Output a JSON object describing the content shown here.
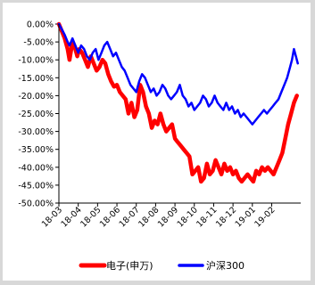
{
  "chart_data": {
    "type": "line",
    "title": "",
    "xlabel": "",
    "ylabel": "",
    "ylim": [
      -50,
      0
    ],
    "y_ticks": [
      0,
      -5,
      -10,
      -15,
      -20,
      -25,
      -30,
      -35,
      -40,
      -45,
      -50
    ],
    "y_tick_labels": [
      "0.00%",
      "-5.00%",
      "-10.00%",
      "-15.00%",
      "-20.00%",
      "-25.00%",
      "-30.00%",
      "-35.00%",
      "-40.00%",
      "-45.00%",
      "-50.00%"
    ],
    "x_tick_labels": [
      "18-03",
      "18-04",
      "18-05",
      "18-06",
      "18-07",
      "18-08",
      "18-09",
      "18-10",
      "18-11",
      "18-12",
      "19-01",
      "19-02"
    ],
    "x_range": [
      0,
      12.5
    ],
    "grid": false,
    "legend_position": "bottom",
    "series": [
      {
        "name": "电子(申万)",
        "color": "#ff0000",
        "x": [
          0,
          0.15,
          0.3,
          0.45,
          0.55,
          0.7,
          0.8,
          0.95,
          1.05,
          1.2,
          1.35,
          1.5,
          1.65,
          1.8,
          1.95,
          2.1,
          2.25,
          2.4,
          2.55,
          2.7,
          2.85,
          3.0,
          3.15,
          3.3,
          3.45,
          3.6,
          3.75,
          3.9,
          4.05,
          4.2,
          4.35,
          4.5,
          4.65,
          4.8,
          4.95,
          5.1,
          5.25,
          5.4,
          5.55,
          5.7,
          5.85,
          6.0,
          6.15,
          6.3,
          6.45,
          6.6,
          6.75,
          6.9,
          7.05,
          7.2,
          7.35,
          7.5,
          7.65,
          7.8,
          7.95,
          8.1,
          8.25,
          8.4,
          8.55,
          8.7,
          8.85,
          9.0,
          9.15,
          9.3,
          9.45,
          9.6,
          9.75,
          9.9,
          10.05,
          10.2,
          10.35,
          10.5,
          10.65,
          10.8,
          10.95,
          11.1,
          11.25,
          11.4,
          11.55,
          11.7,
          11.85,
          12.0,
          12.15,
          12.3
        ],
        "values": [
          0,
          -2.0,
          -4.0,
          -7.0,
          -10.0,
          -5.0,
          -6.0,
          -9.0,
          -7.0,
          -8.0,
          -10.0,
          -12.0,
          -9.0,
          -11.0,
          -13.0,
          -12.0,
          -10.0,
          -11.0,
          -14.0,
          -16.0,
          -17.5,
          -17.0,
          -19.0,
          -20.0,
          -21.0,
          -25.0,
          -22.0,
          -26.0,
          -24.0,
          -17.0,
          -19.0,
          -23.0,
          -25.0,
          -29.0,
          -27.0,
          -28.0,
          -25.0,
          -28.0,
          -30.0,
          -29.0,
          -28.0,
          -32.0,
          -33.0,
          -34.0,
          -35.0,
          -36.0,
          -37.0,
          -42.0,
          -41.0,
          -40.0,
          -44.0,
          -43.0,
          -39.0,
          -42.0,
          -41.0,
          -38.0,
          -40.0,
          -42.0,
          -39.0,
          -41.0,
          -40.0,
          -42.0,
          -41.0,
          -43.0,
          -44.0,
          -43.0,
          -42.0,
          -43.0,
          -44.0,
          -41.0,
          -42.0,
          -40.0,
          -41.0,
          -40.0,
          -41.0,
          -42.0,
          -40.0,
          -38.0,
          -36.0,
          -32.0,
          -28.0,
          -25.0,
          -22.0,
          -20.0
        ]
      },
      {
        "name": "沪深300",
        "color": "#0000ff",
        "x": [
          0,
          0.15,
          0.3,
          0.45,
          0.55,
          0.7,
          0.85,
          1.0,
          1.15,
          1.3,
          1.45,
          1.6,
          1.75,
          1.9,
          2.05,
          2.2,
          2.35,
          2.5,
          2.65,
          2.8,
          2.95,
          3.1,
          3.25,
          3.4,
          3.55,
          3.7,
          3.85,
          4.0,
          4.15,
          4.3,
          4.45,
          4.6,
          4.75,
          4.9,
          5.05,
          5.2,
          5.35,
          5.5,
          5.65,
          5.8,
          5.95,
          6.1,
          6.25,
          6.4,
          6.55,
          6.7,
          6.85,
          7.0,
          7.15,
          7.3,
          7.45,
          7.6,
          7.75,
          7.9,
          8.05,
          8.2,
          8.35,
          8.5,
          8.65,
          8.8,
          8.95,
          9.1,
          9.25,
          9.4,
          9.55,
          9.7,
          9.85,
          10.0,
          10.15,
          10.3,
          10.45,
          10.6,
          10.75,
          10.9,
          11.05,
          11.2,
          11.35,
          11.5,
          11.65,
          11.8,
          11.95,
          12.05,
          12.15,
          12.25,
          12.35
        ],
        "values": [
          0,
          -1.5,
          -3.0,
          -5.0,
          -6.0,
          -4.0,
          -6.0,
          -8.0,
          -6.0,
          -7.0,
          -9.0,
          -10.0,
          -8.0,
          -7.0,
          -10.0,
          -8.0,
          -6.0,
          -5.0,
          -7.0,
          -9.0,
          -8.0,
          -10.0,
          -12.0,
          -13.0,
          -15.0,
          -17.0,
          -18.0,
          -19.0,
          -16.0,
          -14.0,
          -15.0,
          -17.0,
          -19.0,
          -18.0,
          -20.0,
          -19.0,
          -17.0,
          -18.0,
          -20.0,
          -21.0,
          -20.0,
          -19.0,
          -17.0,
          -20.0,
          -21.0,
          -23.0,
          -22.0,
          -24.0,
          -23.0,
          -22.0,
          -20.0,
          -21.0,
          -23.0,
          -22.0,
          -20.0,
          -22.0,
          -23.0,
          -24.0,
          -22.0,
          -24.0,
          -23.0,
          -25.0,
          -24.0,
          -26.0,
          -25.0,
          -26.0,
          -27.0,
          -28.0,
          -27.0,
          -26.0,
          -25.0,
          -24.0,
          -25.0,
          -24.0,
          -23.0,
          -22.0,
          -21.0,
          -19.0,
          -17.0,
          -15.0,
          -12.0,
          -10.0,
          -7.0,
          -9.0,
          -11.0
        ]
      }
    ]
  }
}
